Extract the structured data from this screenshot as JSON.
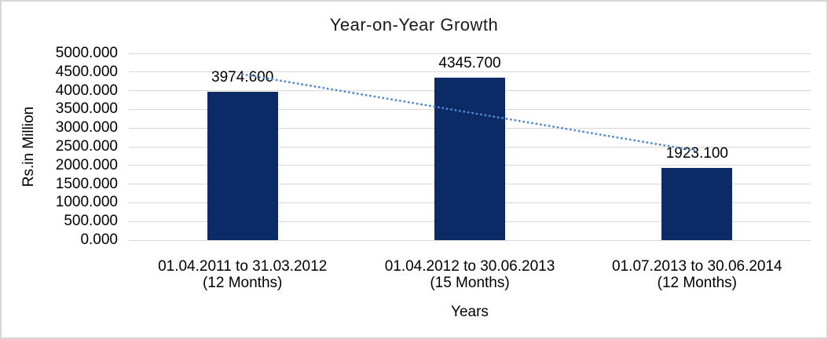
{
  "window": {
    "background_color": "#ffffff",
    "frame_border_color": "#d6d6d6"
  },
  "chart_data": {
    "type": "bar",
    "title": "Year-on-Year Growth",
    "xlabel": "Years",
    "ylabel": "Rs.in Million",
    "categories": [
      {
        "line1": "01.04.2011 to 31.03.2012",
        "line2": "(12 Months)"
      },
      {
        "line1": "01.04.2012 to 30.06.2013",
        "line2": "(15 Months)"
      },
      {
        "line1": "01.07.2013 to 30.06.2014",
        "line2": "(12 Months)"
      }
    ],
    "values": [
      3974.6,
      4345.7,
      1923.1
    ],
    "value_labels": [
      "3974.600",
      "4345.700",
      "1923.100"
    ],
    "ylim": [
      0,
      5000
    ],
    "ytick_step": 500,
    "ytick_labels": [
      "5000.000",
      "4500.000",
      "4000.000",
      "3500.000",
      "3000.000",
      "2500.000",
      "2000.000",
      "1500.000",
      "1000.000",
      "500.000",
      "0.000"
    ],
    "grid": true,
    "legend": "none",
    "bar_color": "#0c2a66",
    "gridline_color": "#d9d9d9",
    "text_color": "#000000",
    "trendline": {
      "type": "linear",
      "style": "dotted",
      "color": "#5089cf",
      "start_value": 4440.2,
      "end_value": 2388.7
    }
  }
}
